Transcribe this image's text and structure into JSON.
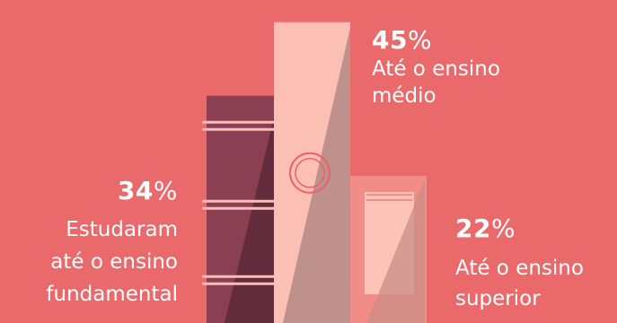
{
  "chart_data": {
    "type": "bar",
    "categories": [
      "Estudaram até o ensino fundamental",
      "Até o ensino médio",
      "Até o ensino superior"
    ],
    "values": [
      34,
      45,
      22
    ],
    "unit": "%",
    "labels": [
      {
        "value": "34",
        "symbol": "%",
        "text": [
          "Estudaram",
          "até o ensino",
          "fundamental"
        ]
      },
      {
        "value": "45",
        "symbol": "%",
        "text": [
          "Até o ensino",
          "médio"
        ]
      },
      {
        "value": "22",
        "symbol": "%",
        "text": [
          "Até o ensino",
          "superior"
        ]
      }
    ]
  },
  "colors": {
    "background": "#ea6a6c",
    "book_fundamental": "#8a3f53",
    "book_fundamental_shade": "#632c3c",
    "book_medio": "#fbbfb3",
    "book_medio_shade": "#bf918d",
    "book_superior": "#f18d86",
    "book_superior_light": "#fcc3b6",
    "book_superior_shade": "#c98e85",
    "text": "#ffffff"
  }
}
